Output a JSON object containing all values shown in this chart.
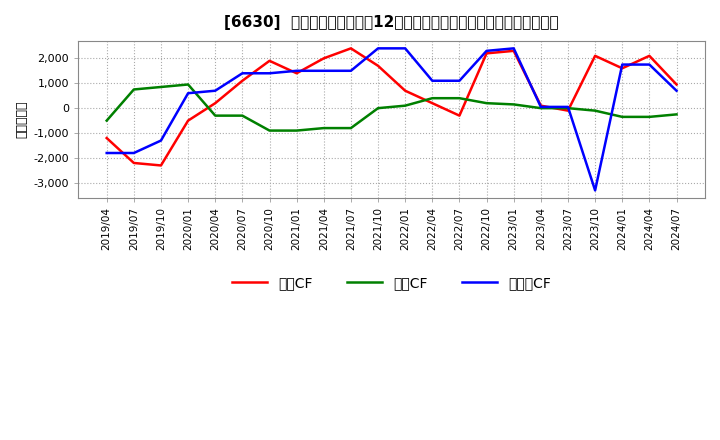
{
  "title": "[6630]  キャッシュフローの12か月移動合計の対前年同期増減額の推移",
  "ylabel": "（百万円）",
  "ylim": [
    -3600,
    2700
  ],
  "yticks": [
    -3000,
    -2000,
    -1000,
    0,
    1000,
    2000
  ],
  "legend_labels": [
    "営業CF",
    "投資CF",
    "フリーCF"
  ],
  "line_colors": [
    "#ff0000",
    "#008000",
    "#0000ff"
  ],
  "background_color": "#ffffff",
  "plot_bg_color": "#ffffff",
  "dates": [
    "2019/04",
    "2019/07",
    "2019/10",
    "2020/01",
    "2020/04",
    "2020/07",
    "2020/10",
    "2021/01",
    "2021/04",
    "2021/07",
    "2021/10",
    "2022/01",
    "2022/04",
    "2022/07",
    "2022/10",
    "2023/01",
    "2023/04",
    "2023/07",
    "2023/10",
    "2024/01",
    "2024/04",
    "2024/07"
  ],
  "series": {
    "営業CF": [
      -1200,
      -2200,
      -2300,
      -500,
      200,
      1100,
      1900,
      1400,
      2000,
      2400,
      1700,
      700,
      200,
      -300,
      2200,
      2300,
      100,
      -100,
      2100,
      1600,
      2100,
      950
    ],
    "投資CF": [
      -500,
      750,
      850,
      950,
      -300,
      -300,
      -900,
      -900,
      -800,
      -800,
      0,
      100,
      400,
      400,
      200,
      150,
      0,
      0,
      -100,
      -350,
      -350,
      -250
    ],
    "フリーCF": [
      -1800,
      -1800,
      -1300,
      600,
      700,
      1400,
      1400,
      1500,
      1500,
      1500,
      2400,
      2400,
      1100,
      1100,
      2300,
      2400,
      50,
      50,
      -3300,
      1750,
      1750,
      700
    ]
  }
}
